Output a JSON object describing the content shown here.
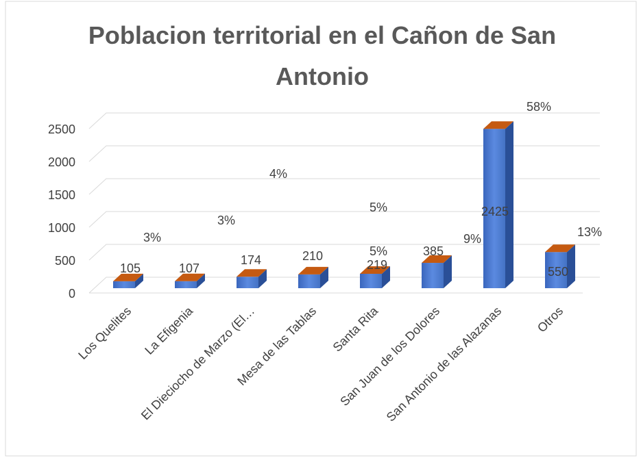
{
  "chart_data": {
    "type": "bar3d",
    "title": "Poblacion territorial en el Cañon de San Antonio",
    "categories": [
      "Los Quelites",
      "La Efigenia",
      "El Dieciocho de Marzo (El…",
      "Mesa de las Tablas",
      "Santa Rita",
      "San Juan de los Dolores",
      "San Antonio de las Alazanas",
      "Otros"
    ],
    "values": [
      105,
      107,
      174,
      210,
      219,
      385,
      2425,
      550
    ],
    "annotations": [
      "3%",
      "3%",
      "4%",
      "5%",
      "5%",
      "9%",
      "58%",
      "13%"
    ],
    "color": "#4472c4",
    "top_color": "#c55a11",
    "ylim": [
      0,
      2500
    ],
    "yticks": [
      0,
      500,
      1000,
      1500,
      2000,
      2500
    ],
    "grid": true
  }
}
